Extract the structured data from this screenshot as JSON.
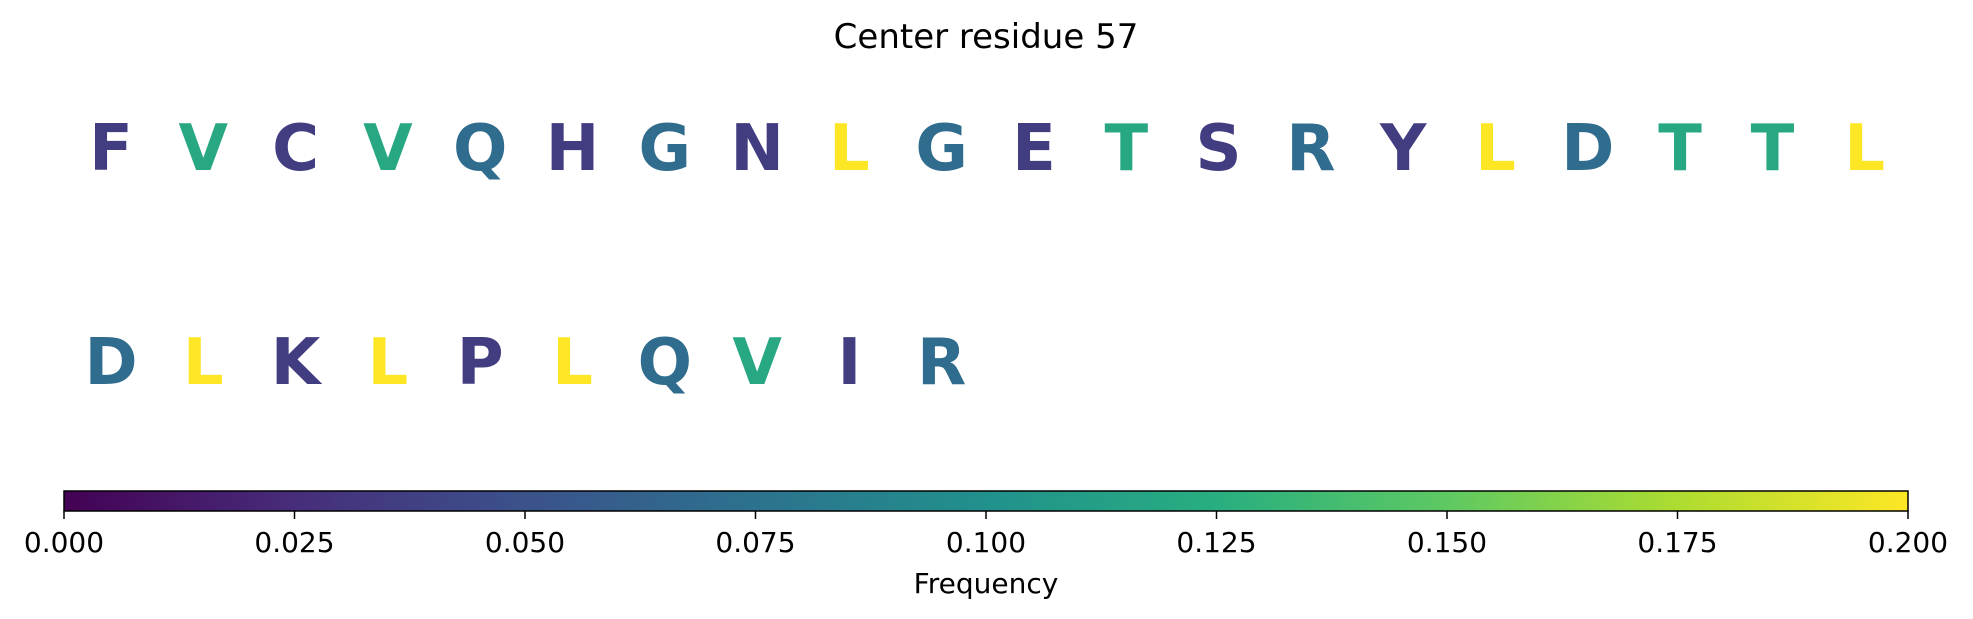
{
  "chart_data": {
    "type": "heatmap",
    "title": "Center residue 57",
    "residues": [
      {
        "letter": "F",
        "frequency": 0.035
      },
      {
        "letter": "V",
        "frequency": 0.12
      },
      {
        "letter": "C",
        "frequency": 0.035
      },
      {
        "letter": "V",
        "frequency": 0.12
      },
      {
        "letter": "Q",
        "frequency": 0.07
      },
      {
        "letter": "H",
        "frequency": 0.035
      },
      {
        "letter": "G",
        "frequency": 0.07
      },
      {
        "letter": "N",
        "frequency": 0.035
      },
      {
        "letter": "L",
        "frequency": 0.2
      },
      {
        "letter": "G",
        "frequency": 0.07
      },
      {
        "letter": "E",
        "frequency": 0.035
      },
      {
        "letter": "T",
        "frequency": 0.12
      },
      {
        "letter": "S",
        "frequency": 0.035
      },
      {
        "letter": "R",
        "frequency": 0.07
      },
      {
        "letter": "Y",
        "frequency": 0.035
      },
      {
        "letter": "L",
        "frequency": 0.2
      },
      {
        "letter": "D",
        "frequency": 0.07
      },
      {
        "letter": "T",
        "frequency": 0.12
      },
      {
        "letter": "T",
        "frequency": 0.12
      },
      {
        "letter": "L",
        "frequency": 0.2
      },
      {
        "letter": "D",
        "frequency": 0.07
      },
      {
        "letter": "L",
        "frequency": 0.2
      },
      {
        "letter": "K",
        "frequency": 0.035
      },
      {
        "letter": "L",
        "frequency": 0.2
      },
      {
        "letter": "P",
        "frequency": 0.035
      },
      {
        "letter": "L",
        "frequency": 0.2
      },
      {
        "letter": "Q",
        "frequency": 0.07
      },
      {
        "letter": "V",
        "frequency": 0.12
      },
      {
        "letter": "I",
        "frequency": 0.035
      },
      {
        "letter": "R",
        "frequency": 0.07
      }
    ],
    "colorbar": {
      "label": "Frequency",
      "range": [
        0,
        0.2
      ],
      "ticks": [
        "0.000",
        "0.025",
        "0.050",
        "0.075",
        "0.100",
        "0.125",
        "0.150",
        "0.175",
        "0.200"
      ],
      "colormap": "viridis",
      "orientation": "horizontal",
      "placement": "bottom"
    }
  }
}
